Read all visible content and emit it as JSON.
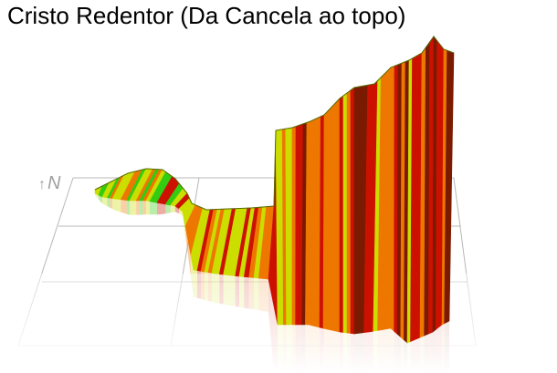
{
  "title": "Cristo Redentor (Da Cancela ao topo)",
  "north_label": "N",
  "north_icon": "north-arrow-icon",
  "colors": {
    "grid": "#b8b8b8",
    "green": "#33cc11",
    "yellow": "#ccdd00",
    "orange": "#ee7700",
    "red": "#cc1100",
    "darkred": "#7a1a00"
  },
  "chart_data": {
    "type": "area",
    "title": "Cristo Redentor (Da Cancela ao topo)",
    "grid": true,
    "legend": "none",
    "grade_color_scale": [
      "green",
      "yellow",
      "orange",
      "red",
      "darkred"
    ]
  }
}
